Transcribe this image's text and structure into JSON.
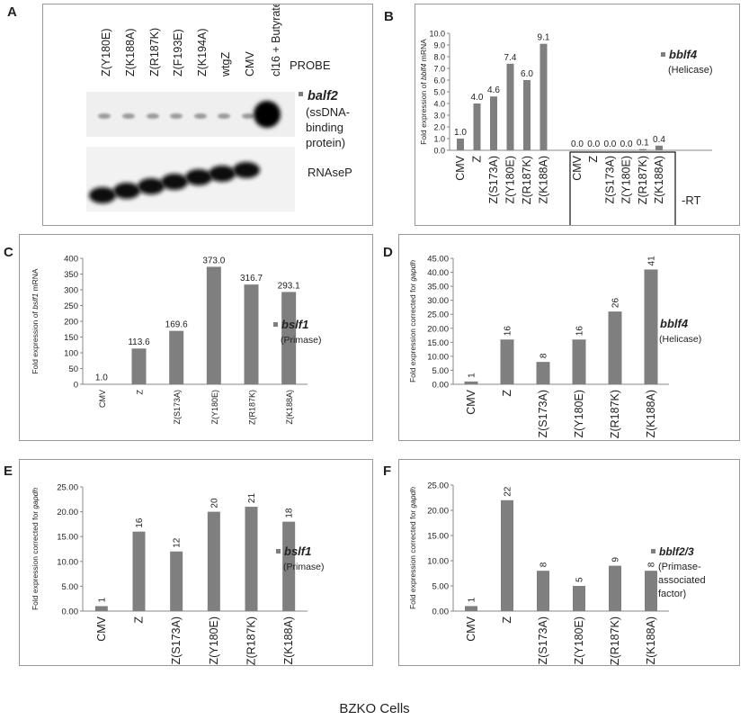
{
  "panel_letters": {
    "a": "A",
    "b": "B",
    "c": "C",
    "d": "D",
    "e": "E",
    "f": "F"
  },
  "footer": "BZKO Cells",
  "blot": {
    "lanes": [
      "Z(Y180E)",
      "Z(K188A)",
      "Z(R187K)",
      "Z(F193E)",
      "Z(K194A)",
      "wtgZ",
      "CMV",
      "cl16 + Butyrate"
    ],
    "probe_label": "PROBE",
    "gene": "balf2",
    "gene_desc": [
      "(ssDNA-",
      "binding",
      "protein)"
    ],
    "control": "RNAseP"
  },
  "colors": {
    "bar": "#7f7f7f",
    "axis": "#888888",
    "text": "#222222",
    "legend_square": "#7f7f7f"
  },
  "chart_data": [
    {
      "id": "B",
      "type": "bar",
      "ylabel_parts": [
        {
          "t": "Fold expression of "
        },
        {
          "t": "bblf4",
          "i": true
        },
        {
          "t": " mRNA"
        }
      ],
      "ylim": [
        0,
        10
      ],
      "ticks": [
        0,
        1,
        2,
        3,
        4,
        5,
        6,
        7,
        8,
        9,
        10
      ],
      "tick_labels": [
        "0.0",
        "1.0",
        "2.0",
        "3.0",
        "4.0",
        "5.0",
        "6.0",
        "7.0",
        "8.0",
        "9.0",
        "10.0"
      ],
      "categories": [
        "CMV",
        "Z",
        "Z(S173A)",
        "Z(Y180E)",
        "Z(R187K)",
        "Z(K188A)",
        "CMV",
        "Z",
        "Z(S173A)",
        "Z(Y180E)",
        "Z(R187K)",
        "Z(K188A)"
      ],
      "values": [
        1.0,
        4.0,
        4.6,
        7.4,
        6.0,
        9.1,
        0.0,
        0.0,
        0.0,
        0.0,
        0.1,
        0.4
      ],
      "data_labels": [
        "1.0",
        "4.0",
        "4.6",
        "7.4",
        "6.0",
        "9.1",
        "0.0",
        "0.0",
        "0.0",
        "0.0",
        "0.1",
        "0.4"
      ],
      "legend": {
        "gene": "bblf4",
        "desc": [
          "(Helicase)"
        ]
      },
      "box_label": "-RT",
      "grid": false
    },
    {
      "id": "C",
      "type": "bar",
      "ylabel_parts": [
        {
          "t": "Fold expression of "
        },
        {
          "t": "bslf1",
          "i": true
        },
        {
          "t": " mRNA"
        }
      ],
      "ylim": [
        0,
        400
      ],
      "ticks": [
        0,
        50,
        100,
        150,
        200,
        250,
        300,
        350,
        400
      ],
      "tick_labels": [
        "0",
        "50",
        "100",
        "150",
        "200",
        "250",
        "300",
        "350",
        "400"
      ],
      "categories": [
        "CMV",
        "Z",
        "Z(S173A)",
        "Z(Y180E)",
        "Z(R187K)",
        "Z(K188A)"
      ],
      "values": [
        1.0,
        113.6,
        169.6,
        373.0,
        316.7,
        293.1
      ],
      "data_labels": [
        "1.0",
        "113.6",
        "169.6",
        "373.0",
        "316.7",
        "293.1"
      ],
      "legend": {
        "gene": "bslf1",
        "desc": [
          "(Primase)"
        ]
      },
      "grid": false
    },
    {
      "id": "D",
      "type": "bar",
      "ylabel_parts": [
        {
          "t": "Fold expression corrected for "
        },
        {
          "t": "gapdh",
          "i": true
        }
      ],
      "ylim": [
        0,
        45
      ],
      "ticks": [
        0,
        5,
        10,
        15,
        20,
        25,
        30,
        35,
        40,
        45
      ],
      "tick_labels": [
        "0.00",
        "5.00",
        "10.00",
        "15.00",
        "20.00",
        "25.00",
        "30.00",
        "35.00",
        "40.00",
        "45.00"
      ],
      "categories": [
        "CMV",
        "Z",
        "Z(S173A)",
        "Z(Y180E)",
        "Z(R187K)",
        "Z(K188A)"
      ],
      "values": [
        1,
        16,
        8,
        16,
        26,
        41
      ],
      "data_labels": [
        "1",
        "16",
        "8",
        "16",
        "26",
        "41"
      ],
      "legend": {
        "gene": "bblf4",
        "desc": [
          "(Helicase)"
        ]
      },
      "grid": false
    },
    {
      "id": "E",
      "type": "bar",
      "ylabel_parts": [
        {
          "t": "Fold expression corrected for "
        },
        {
          "t": "gapdh",
          "i": true
        }
      ],
      "ylim": [
        0,
        25
      ],
      "ticks": [
        0,
        5,
        10,
        15,
        20,
        25
      ],
      "tick_labels": [
        "0.00",
        "5.00",
        "10.00",
        "15.00",
        "20.00",
        "25.00"
      ],
      "categories": [
        "CMV",
        "Z",
        "Z(S173A)",
        "Z(Y180E)",
        "Z(R187K)",
        "Z(K188A)"
      ],
      "values": [
        1,
        16,
        12,
        20,
        21,
        18
      ],
      "data_labels": [
        "1",
        "16",
        "12",
        "20",
        "21",
        "18"
      ],
      "legend": {
        "gene": "bslf1",
        "desc": [
          "(Primase)"
        ]
      },
      "grid": false
    },
    {
      "id": "F",
      "type": "bar",
      "ylabel_parts": [
        {
          "t": "Fold expression corrected for "
        },
        {
          "t": "gapdh",
          "i": true
        }
      ],
      "ylim": [
        0,
        25
      ],
      "ticks": [
        0,
        5,
        10,
        15,
        20,
        25
      ],
      "tick_labels": [
        "0.00",
        "5.00",
        "10.00",
        "15.00",
        "20.00",
        "25.00"
      ],
      "categories": [
        "CMV",
        "Z",
        "Z(S173A)",
        "Z(Y180E)",
        "Z(R187K)",
        "Z(K188A)"
      ],
      "values": [
        1,
        22,
        8,
        5,
        9,
        8
      ],
      "data_labels": [
        "1",
        "22",
        "8",
        "5",
        "9",
        "8"
      ],
      "legend": {
        "gene": "bblf2/3",
        "desc": [
          "(Primase-",
          "associated",
          "factor)"
        ]
      },
      "grid": false
    }
  ]
}
